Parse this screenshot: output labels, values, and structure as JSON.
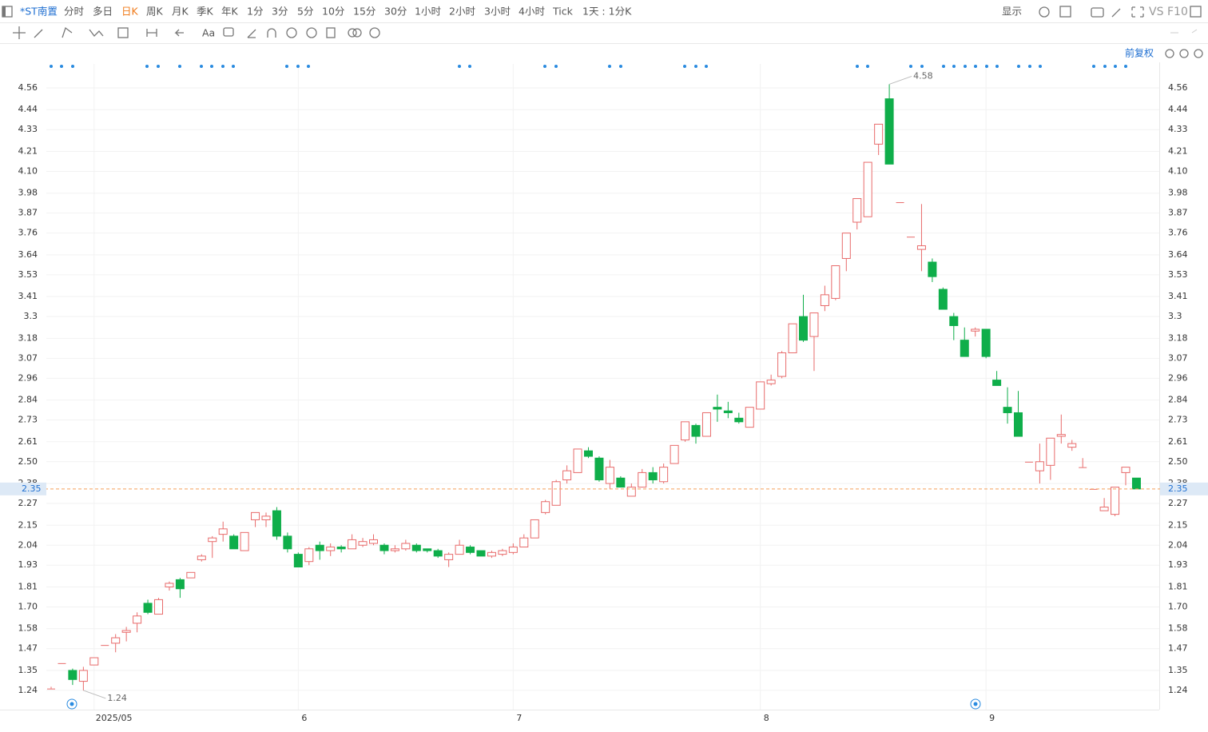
{
  "toolbar": {
    "symbol": "*ST南置",
    "periods": [
      "分时",
      "多日",
      "日K",
      "周K",
      "月K",
      "季K",
      "年K",
      "1分",
      "3分",
      "5分",
      "10分",
      "15分",
      "30分",
      "1小时",
      "2小时",
      "3小时",
      "4小时",
      "Tick",
      "1天 : 1分K"
    ],
    "active_period": "日K",
    "display": "显示",
    "vs": "VS",
    "f10": "F10",
    "adjust": "前复权"
  },
  "chart_data": {
    "type": "candlestick",
    "categories": [
      null,
      null,
      null,
      null,
      "2025/05",
      null,
      null,
      null,
      null,
      null,
      null,
      null,
      null,
      null,
      null,
      null,
      null,
      null,
      null,
      null,
      null,
      null,
      null,
      "6",
      null,
      null,
      null,
      null,
      null,
      null,
      null,
      null,
      null,
      null,
      null,
      null,
      null,
      null,
      null,
      null,
      null,
      null,
      null,
      "7",
      null,
      null,
      null,
      null,
      null,
      null,
      null,
      null,
      null,
      null,
      null,
      null,
      null,
      null,
      null,
      null,
      null,
      null,
      null,
      null,
      null,
      null,
      "8",
      null,
      null,
      null,
      null,
      null,
      null,
      null,
      null,
      null,
      null,
      null,
      null,
      null,
      null,
      null,
      null,
      null,
      null,
      null,
      null,
      "9",
      null,
      null,
      null,
      null,
      null,
      null,
      null,
      null,
      null,
      null,
      null,
      null,
      null,
      null
    ],
    "open": [
      1.25,
      1.39,
      1.35,
      1.29,
      1.38,
      1.49,
      1.5,
      1.56,
      1.61,
      1.72,
      1.66,
      1.81,
      1.85,
      1.86,
      1.96,
      2.06,
      2.1,
      2.09,
      2.01,
      2.18,
      2.18,
      2.23,
      2.09,
      1.99,
      1.95,
      2.04,
      2.01,
      2.03,
      2.02,
      2.04,
      2.05,
      2.04,
      2.01,
      2.02,
      2.04,
      2.02,
      2.01,
      1.96,
      1.99,
      2.03,
      2.01,
      1.98,
      1.99,
      2.0,
      2.03,
      2.08,
      2.22,
      2.26,
      2.4,
      2.44,
      2.56,
      2.52,
      2.38,
      2.41,
      2.31,
      2.36,
      2.44,
      2.39,
      2.49,
      2.62,
      2.7,
      2.64,
      2.8,
      2.78,
      2.74,
      2.69,
      2.79,
      2.93,
      2.97,
      3.1,
      3.3,
      3.19,
      3.36,
      3.4,
      3.62,
      3.82,
      3.85,
      4.25,
      4.5,
      3.93,
      3.74,
      3.67,
      3.6,
      3.45,
      3.3,
      3.17,
      3.22,
      3.23,
      2.95,
      2.8,
      2.77,
      2.5,
      2.45,
      2.48,
      2.64,
      2.58,
      2.47,
      2.35,
      2.23,
      2.21,
      2.44,
      2.41
    ],
    "high": [
      1.26,
      1.39,
      1.36,
      1.37,
      1.42,
      1.49,
      1.55,
      1.59,
      1.67,
      1.74,
      1.75,
      1.84,
      1.86,
      1.89,
      1.99,
      2.09,
      2.17,
      2.1,
      2.11,
      2.22,
      2.22,
      2.25,
      2.11,
      2.0,
      2.03,
      2.06,
      2.05,
      2.04,
      2.1,
      2.08,
      2.1,
      2.05,
      2.04,
      2.07,
      2.05,
      2.02,
      2.02,
      2.0,
      2.07,
      2.04,
      2.01,
      2.01,
      2.02,
      2.05,
      2.1,
      2.18,
      2.29,
      2.4,
      2.48,
      2.57,
      2.58,
      2.53,
      2.51,
      2.42,
      2.38,
      2.46,
      2.47,
      2.49,
      2.59,
      2.72,
      2.71,
      2.77,
      2.87,
      2.83,
      2.77,
      2.8,
      2.94,
      2.98,
      3.11,
      3.26,
      3.42,
      3.32,
      3.47,
      3.58,
      3.76,
      3.95,
      4.15,
      4.36,
      4.58,
      3.93,
      3.74,
      3.92,
      3.62,
      3.46,
      3.32,
      3.24,
      3.24,
      3.23,
      3.0,
      2.91,
      2.89,
      2.5,
      2.6,
      2.63,
      2.76,
      2.62,
      2.52,
      2.35,
      2.3,
      2.36,
      2.47,
      2.41
    ],
    "low": [
      1.25,
      1.39,
      1.27,
      1.24,
      1.38,
      1.49,
      1.45,
      1.51,
      1.56,
      1.66,
      1.66,
      1.79,
      1.75,
      1.86,
      1.95,
      1.97,
      2.06,
      2.02,
      2.01,
      2.14,
      2.14,
      2.07,
      2.0,
      1.92,
      1.93,
      1.96,
      1.98,
      2.0,
      2.02,
      2.03,
      2.04,
      1.99,
      2.0,
      2.01,
      2.0,
      2.0,
      1.97,
      1.92,
      1.99,
      1.99,
      1.98,
      1.97,
      1.98,
      1.99,
      2.03,
      2.08,
      2.21,
      2.26,
      2.38,
      2.44,
      2.52,
      2.39,
      2.35,
      2.36,
      2.31,
      2.36,
      2.38,
      2.38,
      2.49,
      2.61,
      2.6,
      2.64,
      2.72,
      2.74,
      2.71,
      2.69,
      2.79,
      2.92,
      2.96,
      3.1,
      3.16,
      3.0,
      3.33,
      3.39,
      3.55,
      3.78,
      3.85,
      4.19,
      4.14,
      3.93,
      3.74,
      3.55,
      3.49,
      3.34,
      3.17,
      3.08,
      3.19,
      3.07,
      2.92,
      2.71,
      2.64,
      2.5,
      2.38,
      2.4,
      2.6,
      2.56,
      2.47,
      2.35,
      2.23,
      2.2,
      2.37,
      2.35
    ],
    "close": [
      1.25,
      1.39,
      1.3,
      1.35,
      1.42,
      1.49,
      1.53,
      1.57,
      1.65,
      1.67,
      1.74,
      1.83,
      1.8,
      1.89,
      1.98,
      2.08,
      2.13,
      2.02,
      2.11,
      2.22,
      2.2,
      2.09,
      2.02,
      1.92,
      2.02,
      2.01,
      2.03,
      2.02,
      2.07,
      2.06,
      2.07,
      2.01,
      2.02,
      2.05,
      2.01,
      2.01,
      1.98,
      1.99,
      2.04,
      2.0,
      1.98,
      2.0,
      2.01,
      2.03,
      2.08,
      2.18,
      2.28,
      2.39,
      2.45,
      2.57,
      2.53,
      2.4,
      2.47,
      2.36,
      2.36,
      2.44,
      2.4,
      2.47,
      2.59,
      2.72,
      2.64,
      2.77,
      2.79,
      2.77,
      2.72,
      2.8,
      2.94,
      2.95,
      3.1,
      3.26,
      3.17,
      3.32,
      3.42,
      3.58,
      3.76,
      3.95,
      4.15,
      4.36,
      4.14,
      3.93,
      3.74,
      3.69,
      3.52,
      3.34,
      3.25,
      3.08,
      3.23,
      3.08,
      2.92,
      2.77,
      2.64,
      2.5,
      2.5,
      2.63,
      2.65,
      2.6,
      2.47,
      2.35,
      2.25,
      2.36,
      2.47,
      2.35
    ],
    "up_color": "#e86b6b",
    "down_color": "#0fae4a",
    "last_price": 2.35,
    "last_price_color": "#f5a05a",
    "ylim": [
      1.134,
      4.692
    ],
    "yticks": [
      1.24,
      1.35,
      1.47,
      1.58,
      {
        "value": 1.7,
        "label": "1.70"
      },
      1.81,
      1.93,
      2.04,
      2.15,
      2.27,
      2.38,
      {
        "value": 2.5,
        "label": "2.50"
      },
      2.61,
      2.73,
      2.84,
      2.96,
      3.07,
      3.18,
      3.3,
      3.41,
      3.53,
      3.64,
      3.76,
      3.87,
      3.98,
      {
        "value": 4.1,
        "label": "4.10"
      },
      4.21,
      4.33,
      4.44,
      4.56
    ],
    "grid": true
  }
}
